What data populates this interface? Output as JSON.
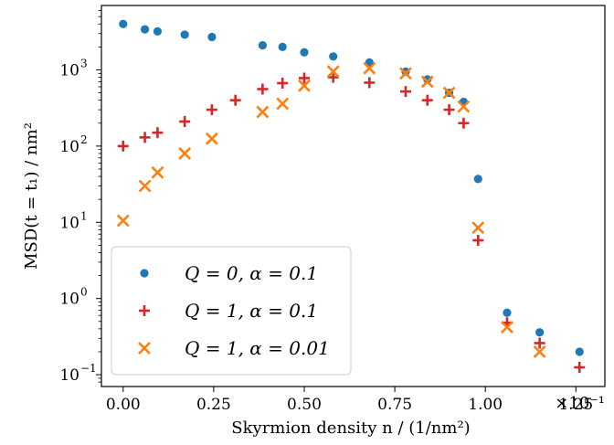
{
  "chart_data": {
    "type": "scatter",
    "xlabel": "Skyrmion density n / (1/nm²)",
    "ylabel": "MSD(t = t₁) / nm²",
    "x_multiplier": "×10⁻¹",
    "xlim": [
      -0.06,
      1.33
    ],
    "ylim": [
      0.07,
      7000
    ],
    "yscale": "log",
    "x_ticks": [
      0.0,
      0.25,
      0.5,
      0.75,
      1.0,
      1.25
    ],
    "x_tick_labels": [
      "0.00",
      "0.25",
      "0.50",
      "0.75",
      "1.00",
      "1.25"
    ],
    "y_ticks": [
      0.1,
      1,
      10,
      100,
      1000
    ],
    "y_tick_labels": [
      "10",
      "10",
      "10",
      "10",
      "10"
    ],
    "y_tick_exponents": [
      "−1",
      "0",
      "1",
      "2",
      "3"
    ],
    "grid": false,
    "legend_position": "lower-left",
    "series": [
      {
        "name": "Q = 0, α = 0.1",
        "marker": "circle",
        "color": "#1f77b4",
        "x": [
          0.0,
          0.06,
          0.095,
          0.17,
          0.245,
          0.385,
          0.44,
          0.5,
          0.58,
          0.68,
          0.78,
          0.84,
          0.9,
          0.94,
          0.98,
          1.06,
          1.15,
          1.26
        ],
        "y": [
          4000,
          3400,
          3200,
          2900,
          2700,
          2100,
          2000,
          1700,
          1500,
          1250,
          950,
          750,
          500,
          380,
          37,
          0.65,
          0.36,
          0.2
        ]
      },
      {
        "name": "Q = 1, α = 0.1",
        "marker": "plus",
        "color": "#d62728",
        "x": [
          0.0,
          0.06,
          0.095,
          0.17,
          0.245,
          0.31,
          0.385,
          0.44,
          0.5,
          0.58,
          0.68,
          0.78,
          0.84,
          0.9,
          0.94,
          0.98,
          1.06,
          1.15,
          1.26
        ],
        "y": [
          100,
          130,
          150,
          210,
          300,
          400,
          560,
          670,
          780,
          800,
          680,
          520,
          400,
          300,
          200,
          5.8,
          0.48,
          0.26,
          0.125
        ]
      },
      {
        "name": "Q = 1, α = 0.01",
        "marker": "x",
        "color": "#ff7f0e",
        "x": [
          0.0,
          0.06,
          0.095,
          0.17,
          0.245,
          0.385,
          0.44,
          0.5,
          0.58,
          0.68,
          0.78,
          0.84,
          0.9,
          0.94,
          0.98,
          1.06,
          1.15
        ],
        "y": [
          10.5,
          30,
          45,
          80,
          125,
          280,
          360,
          620,
          950,
          1050,
          900,
          700,
          500,
          330,
          8.5,
          0.42,
          0.2
        ]
      }
    ]
  }
}
